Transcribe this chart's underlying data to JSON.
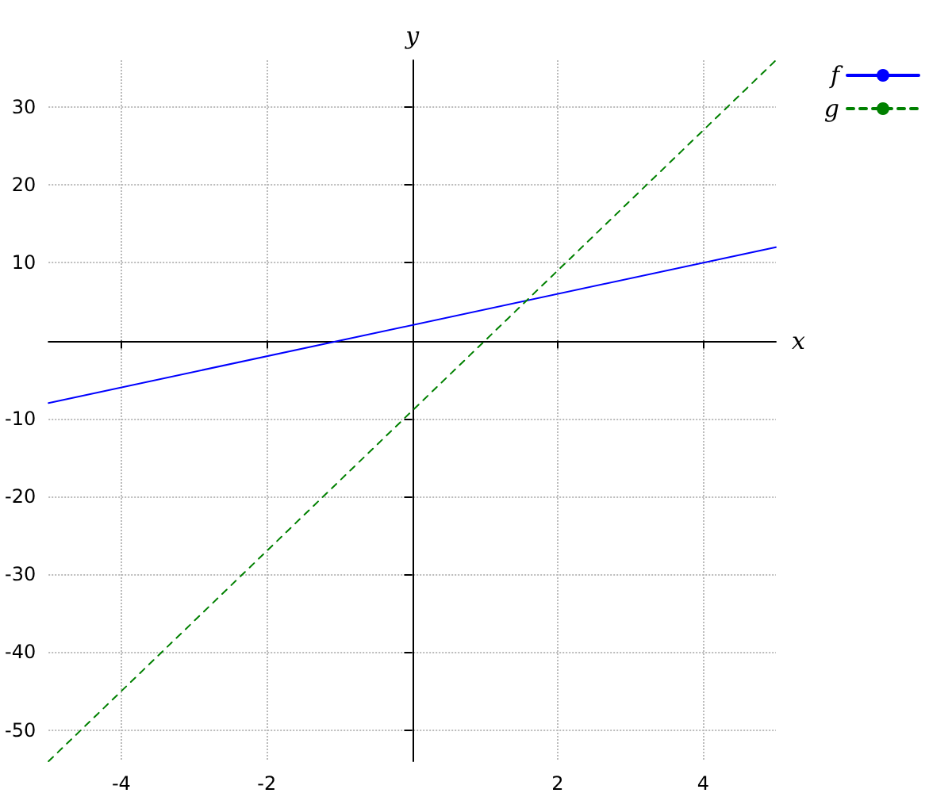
{
  "chart_data": {
    "type": "line",
    "xlabel": "x",
    "ylabel": "y",
    "x": [
      -5,
      5
    ],
    "series": [
      {
        "name": "f",
        "color": "#0000ff",
        "line_style": "solid",
        "values": [
          -8,
          12
        ]
      },
      {
        "name": "g",
        "color": "#008000",
        "line_style": "dashed",
        "values": [
          -54,
          36
        ]
      }
    ],
    "xlim": [
      -5,
      5
    ],
    "ylim": [
      -54,
      36
    ],
    "xticks": [
      -4,
      -2,
      2,
      4
    ],
    "yticks": [
      -50,
      -40,
      -30,
      -20,
      -10,
      10,
      20,
      30
    ],
    "grid": true,
    "legend": "top right",
    "marker": "none"
  }
}
